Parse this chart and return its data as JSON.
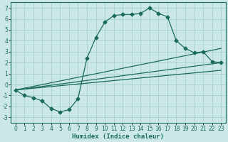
{
  "title": "",
  "xlabel": "Humidex (Indice chaleur)",
  "background_color": "#cce8e6",
  "grid_color": "#a8d4d0",
  "line_color": "#1a6b5a",
  "xlim": [
    -0.5,
    23.5
  ],
  "ylim": [
    -3.5,
    7.5
  ],
  "xticks": [
    0,
    1,
    2,
    3,
    4,
    5,
    6,
    7,
    8,
    9,
    10,
    11,
    12,
    13,
    14,
    15,
    16,
    17,
    18,
    19,
    20,
    21,
    22,
    23
  ],
  "yticks": [
    -3,
    -2,
    -1,
    0,
    1,
    2,
    3,
    4,
    5,
    6,
    7
  ],
  "main_line": {
    "x": [
      0,
      1,
      2,
      3,
      4,
      5,
      6,
      7,
      8,
      9,
      10,
      11,
      12,
      13,
      14,
      15,
      16,
      17,
      18,
      19,
      20,
      21,
      22,
      23
    ],
    "y": [
      -0.5,
      -1.0,
      -1.2,
      -1.5,
      -2.2,
      -2.5,
      -2.3,
      -1.3,
      2.4,
      4.3,
      5.7,
      6.3,
      6.4,
      6.4,
      6.5,
      7.0,
      6.5,
      6.2,
      4.0,
      3.3,
      2.9,
      3.0,
      2.1,
      2.0
    ]
  },
  "straight_lines": [
    {
      "x": [
        0,
        23
      ],
      "y": [
        -0.5,
        2.0
      ]
    },
    {
      "x": [
        0,
        23
      ],
      "y": [
        -0.5,
        1.3
      ]
    },
    {
      "x": [
        0,
        23
      ],
      "y": [
        -0.5,
        3.3
      ]
    }
  ]
}
